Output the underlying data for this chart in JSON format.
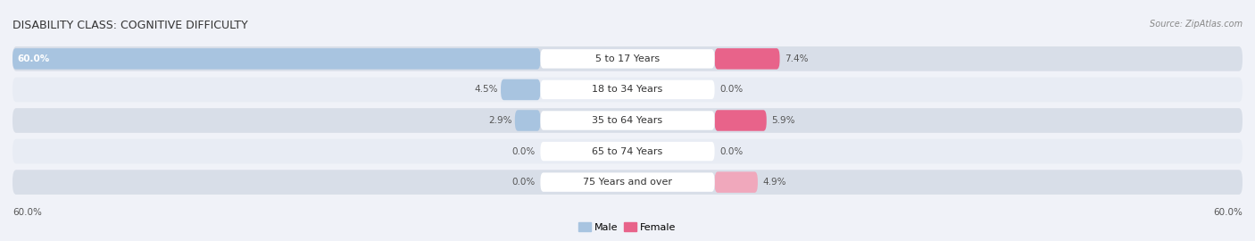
{
  "title": "DISABILITY CLASS: COGNITIVE DIFFICULTY",
  "source": "Source: ZipAtlas.com",
  "categories": [
    "5 to 17 Years",
    "18 to 34 Years",
    "35 to 64 Years",
    "65 to 74 Years",
    "75 Years and over"
  ],
  "male_values": [
    60.0,
    4.5,
    2.9,
    0.0,
    0.0
  ],
  "female_values": [
    7.4,
    0.0,
    5.9,
    0.0,
    4.9
  ],
  "max_val": 60.0,
  "male_color": "#a8c4e0",
  "female_color_strong": "#e8638a",
  "female_color_light": "#f0a8bc",
  "male_label": "Male",
  "female_label": "Female",
  "row_bg_color_dark": "#d8dee8",
  "row_bg_color_light": "#e8ecf4",
  "title_fontsize": 9,
  "label_fontsize": 8,
  "value_fontsize": 7.5,
  "legend_fontsize": 8,
  "source_fontsize": 7
}
